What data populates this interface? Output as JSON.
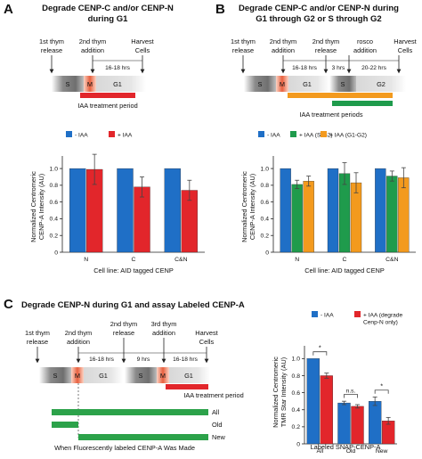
{
  "colors": {
    "minus_iaa": "#1f6fc6",
    "plus_iaa": "#e2262b",
    "plus_iaa_s_g2": "#1f9b4c",
    "plus_iaa_g1_g2": "#f39a1e",
    "iaa_period": "#e2262b",
    "s_phase": "#7a7a7a",
    "m_phase": "#e8785a",
    "g1_phase": "#cfcfcf",
    "label_bar": "#2ca24a"
  },
  "panel_a": {
    "letter": "A",
    "title_line1": "Degrade CENP-C and/or CENP-N",
    "title_line2": "during G1",
    "event_1st": [
      "1st thym",
      "release"
    ],
    "event_2nd": [
      "2nd thym",
      "addition"
    ],
    "event_harvest": [
      "Harvest",
      "Cells"
    ],
    "interval": "16-18 hrs",
    "phase_s": "S",
    "phase_m": "M",
    "phase_g1": "G1",
    "iaa_label": "IAA treatment period"
  },
  "panel_b": {
    "letter": "B",
    "title_line1": "Degrade CENP-C and/or CENP-N during",
    "title_line2": "G1 through G2 or S through G2",
    "event_1st": [
      "1st thym",
      "release"
    ],
    "event_2nd_add": [
      "2nd thym",
      "addition"
    ],
    "event_2nd_rel": [
      "2nd thym",
      "release"
    ],
    "event_rosco": [
      "rosco",
      "addition"
    ],
    "event_harvest": [
      "Harvest",
      "Cells"
    ],
    "interval_1": "16-18 hrs",
    "interval_2": "3 hrs",
    "interval_3": "20-22 hrs",
    "phase_s": "S",
    "phase_m": "M",
    "phase_g1": "G1",
    "phase_g2": "G2",
    "iaa_label": "IAA treatment periods"
  },
  "panel_c": {
    "letter": "C",
    "title": "Degrade CENP-N during G1 and assay Labeled CENP-A",
    "event_1st": [
      "1st thym",
      "release"
    ],
    "event_2nd_add": [
      "2nd thym",
      "addition"
    ],
    "event_2nd_rel": [
      "2nd thym",
      "release"
    ],
    "event_3rd": [
      "3rd thym",
      "addition"
    ],
    "event_harvest": [
      "Harvest",
      "Cells"
    ],
    "interval_1": "16-18 hrs",
    "interval_2": "9 hrs",
    "interval_3": "16-18 hrs",
    "phase_s": "S",
    "phase_m": "M",
    "phase_g1": "G1",
    "iaa_label": "IAA treatment period",
    "label_all": "All",
    "label_old": "Old",
    "label_new": "New",
    "label_caption": "When Fluorescently labeled CENP-A Was Made"
  },
  "chart_data": [
    {
      "id": "A",
      "type": "bar",
      "categories": [
        "N",
        "C",
        "C&N"
      ],
      "series": [
        {
          "name": "- IAA",
          "values": [
            1.0,
            1.0,
            1.0
          ],
          "errors": [
            0.0,
            0.0,
            0.0
          ]
        },
        {
          "name": "+ IAA",
          "values": [
            0.99,
            0.78,
            0.74
          ],
          "errors": [
            0.18,
            0.12,
            0.12
          ]
        }
      ],
      "ylabel": "Normalized Centromeric CENP-A Intensity (AU)",
      "xlabel": "Cell line: AID tagged CENP",
      "yticks": [
        0,
        0.2,
        0.4,
        0.6,
        0.8,
        1.0
      ],
      "ylim": [
        0,
        1.15
      ],
      "legend": "top"
    },
    {
      "id": "B",
      "type": "bar",
      "categories": [
        "N",
        "C",
        "C&N"
      ],
      "series": [
        {
          "name": "- IAA",
          "values": [
            1.0,
            1.0,
            1.0
          ],
          "errors": [
            0.0,
            0.0,
            0.0
          ]
        },
        {
          "name": "+ IAA (S-G2)",
          "values": [
            0.81,
            0.94,
            0.91
          ],
          "errors": [
            0.05,
            0.13,
            0.06
          ]
        },
        {
          "name": "+ IAA (G1-G2)",
          "values": [
            0.85,
            0.83,
            0.89
          ],
          "errors": [
            0.06,
            0.12,
            0.12
          ]
        }
      ],
      "ylabel": "Normalized Centromeric CENP-A Intensity (AU)",
      "xlabel": "Cell line: AID tagged CENP",
      "yticks": [
        0,
        0.2,
        0.4,
        0.6,
        0.8,
        1.0
      ],
      "ylim": [
        0,
        1.15
      ],
      "legend": "top"
    },
    {
      "id": "C",
      "type": "bar",
      "categories": [
        "All",
        "Old",
        "New"
      ],
      "series": [
        {
          "name": "- IAA",
          "values": [
            1.0,
            0.48,
            0.5
          ],
          "errors": [
            0.0,
            0.02,
            0.05
          ]
        },
        {
          "name": "+ IAA (degrade Cenp-N only)",
          "values": [
            0.8,
            0.44,
            0.27
          ],
          "errors": [
            0.03,
            0.02,
            0.04
          ]
        }
      ],
      "ylabel": "Normalized Centromeric TMR Star Intensity (AU)",
      "xlabel": "Labeled SNAP-CENP-A",
      "yticks": [
        0,
        0.2,
        0.4,
        0.6,
        0.8,
        1.0
      ],
      "ylim": [
        0,
        1.15
      ],
      "significance": [
        "*",
        "n.s.",
        "*"
      ],
      "legend": "top"
    }
  ]
}
